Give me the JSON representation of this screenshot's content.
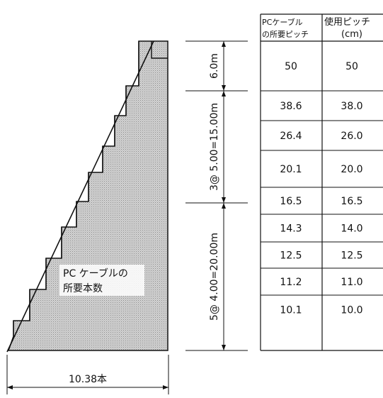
{
  "diagram": {
    "area_label_line1": "PC ケーブルの",
    "area_label_line2": "所要本数",
    "width_label": "10.38本",
    "segments": [
      {
        "label": "6.0m"
      },
      {
        "label": "3@ 5.00=15.00m"
      },
      {
        "label": "5@ 4.00=20.00m"
      }
    ]
  },
  "table": {
    "headers": {
      "required_line1": "PCケーブル",
      "required_line2": "の所要ピッチ",
      "used_line1": "使用ピッチ",
      "used_line2": "(cm)"
    },
    "rows": [
      {
        "required": "50",
        "used": "50"
      },
      {
        "required": "38.6",
        "used": "38.0"
      },
      {
        "required": "26.4",
        "used": "26.0"
      },
      {
        "required": "20.1",
        "used": "20.0"
      },
      {
        "required": "16.5",
        "used": "16.5"
      },
      {
        "required": "14.3",
        "used": "14.0"
      },
      {
        "required": "12.5",
        "used": "12.5"
      },
      {
        "required": "11.2",
        "used": "11.0"
      },
      {
        "required": "10.1",
        "used": "10.0"
      }
    ]
  },
  "colors": {
    "fill": "#c9c9c9",
    "line": "#111111"
  }
}
